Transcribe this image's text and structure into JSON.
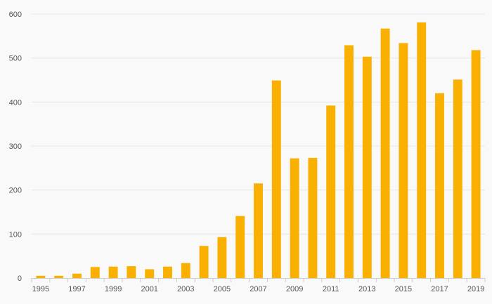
{
  "chart_data": {
    "type": "bar",
    "title": "",
    "xlabel": "",
    "ylabel": "",
    "categories": [
      "1995",
      "1996",
      "1997",
      "1998",
      "1999",
      "2000",
      "2001",
      "2002",
      "2003",
      "2004",
      "2005",
      "2006",
      "2007",
      "2008",
      "2009",
      "2010",
      "2011",
      "2012",
      "2013",
      "2014",
      "2015",
      "2016",
      "2017",
      "2018",
      "2019"
    ],
    "x_tick_labels": [
      "1995",
      "1997",
      "1999",
      "2001",
      "2003",
      "2005",
      "2007",
      "2009",
      "2011",
      "2013",
      "2015",
      "2017",
      "2019"
    ],
    "values": [
      5,
      5,
      10,
      25,
      26,
      27,
      20,
      26,
      34,
      73,
      93,
      141,
      215,
      449,
      272,
      273,
      392,
      529,
      503,
      567,
      534,
      581,
      420,
      451,
      518
    ],
    "y_ticks": [
      0,
      100,
      200,
      300,
      400,
      500,
      600
    ],
    "ylim": [
      0,
      600
    ],
    "grid": true,
    "legend": "none",
    "colors": {
      "bar": "#f9b000",
      "grid": "#e6e6e6",
      "axis": "#cccccc",
      "text": "#555555",
      "background": "#f9f9f9"
    }
  }
}
